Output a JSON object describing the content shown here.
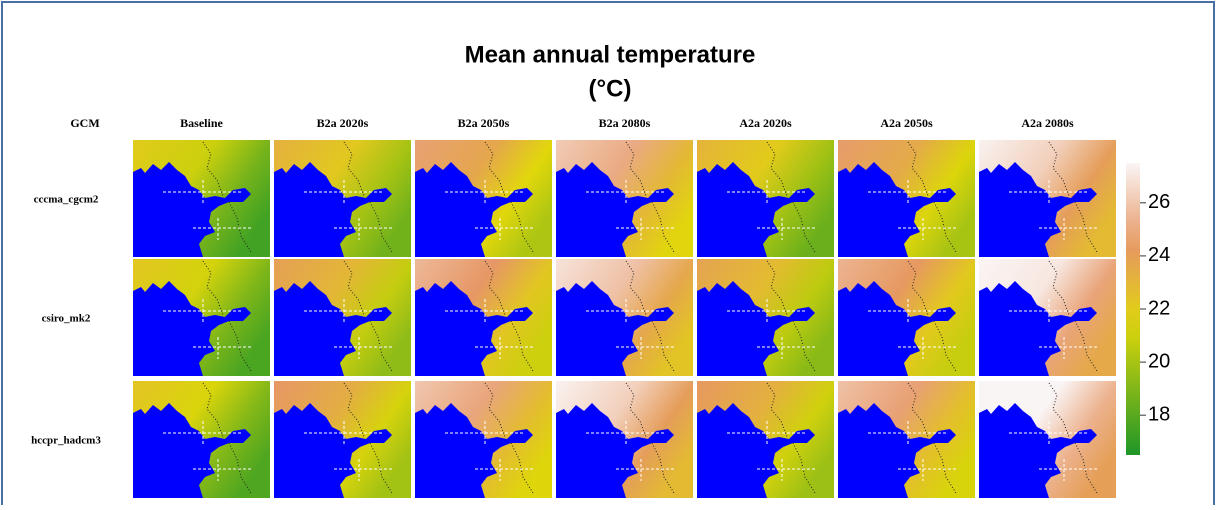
{
  "figure": {
    "title": "Mean annual temperature",
    "subtitle": "(°C)",
    "row_header": "GCM",
    "columns": [
      "Baseline",
      "B2a 2020s",
      "B2a 2050s",
      "B2a 2080s",
      "A2a 2020s",
      "A2a 2050s",
      "A2a 2080s"
    ],
    "rows": [
      "cccma_cgcm2",
      "csiro_mk2",
      "hccpr_hadcm3"
    ],
    "colorbar": {
      "lim": [
        16.5,
        27.5
      ],
      "ticks": [
        18,
        20,
        22,
        24,
        26
      ]
    }
  }
}
